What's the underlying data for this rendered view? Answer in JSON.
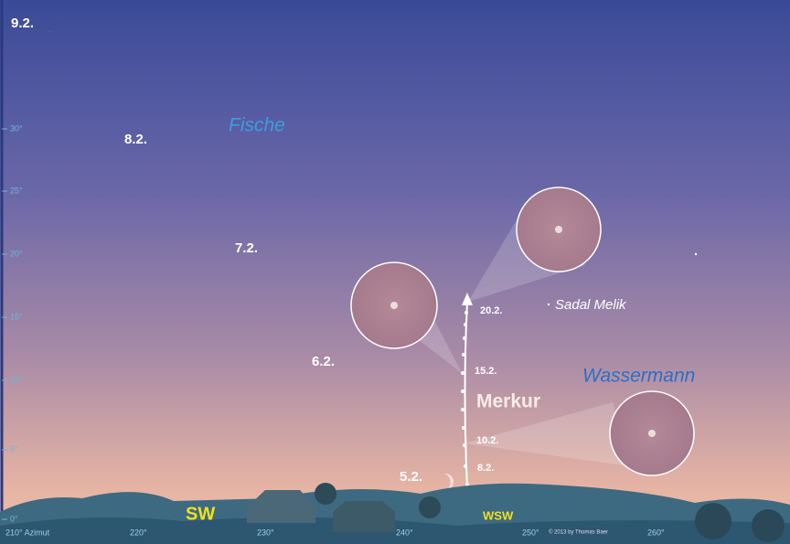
{
  "moons": [
    {
      "label": "9.2."
    },
    {
      "label": "8.2."
    },
    {
      "label": "7.2."
    },
    {
      "label": "6.2."
    },
    {
      "label": "5.2."
    }
  ],
  "constellations": [
    "Fische",
    "Wassermann"
  ],
  "star": "Sadal Melik",
  "planet": {
    "name": "Merkur",
    "dates": [
      "20.2.",
      "15.2.",
      "10.2.",
      "8.2."
    ]
  },
  "directions": [
    "SW",
    "WSW"
  ],
  "altitude_labels": [
    "0°",
    "5°",
    "10°",
    "15°",
    "20°",
    "25°",
    "30°"
  ],
  "azimuth_labels": [
    "210° Azimut",
    "220°",
    "230°",
    "240°",
    "250°",
    "260°"
  ],
  "credit": "© 2013 by Thomas Baer"
}
